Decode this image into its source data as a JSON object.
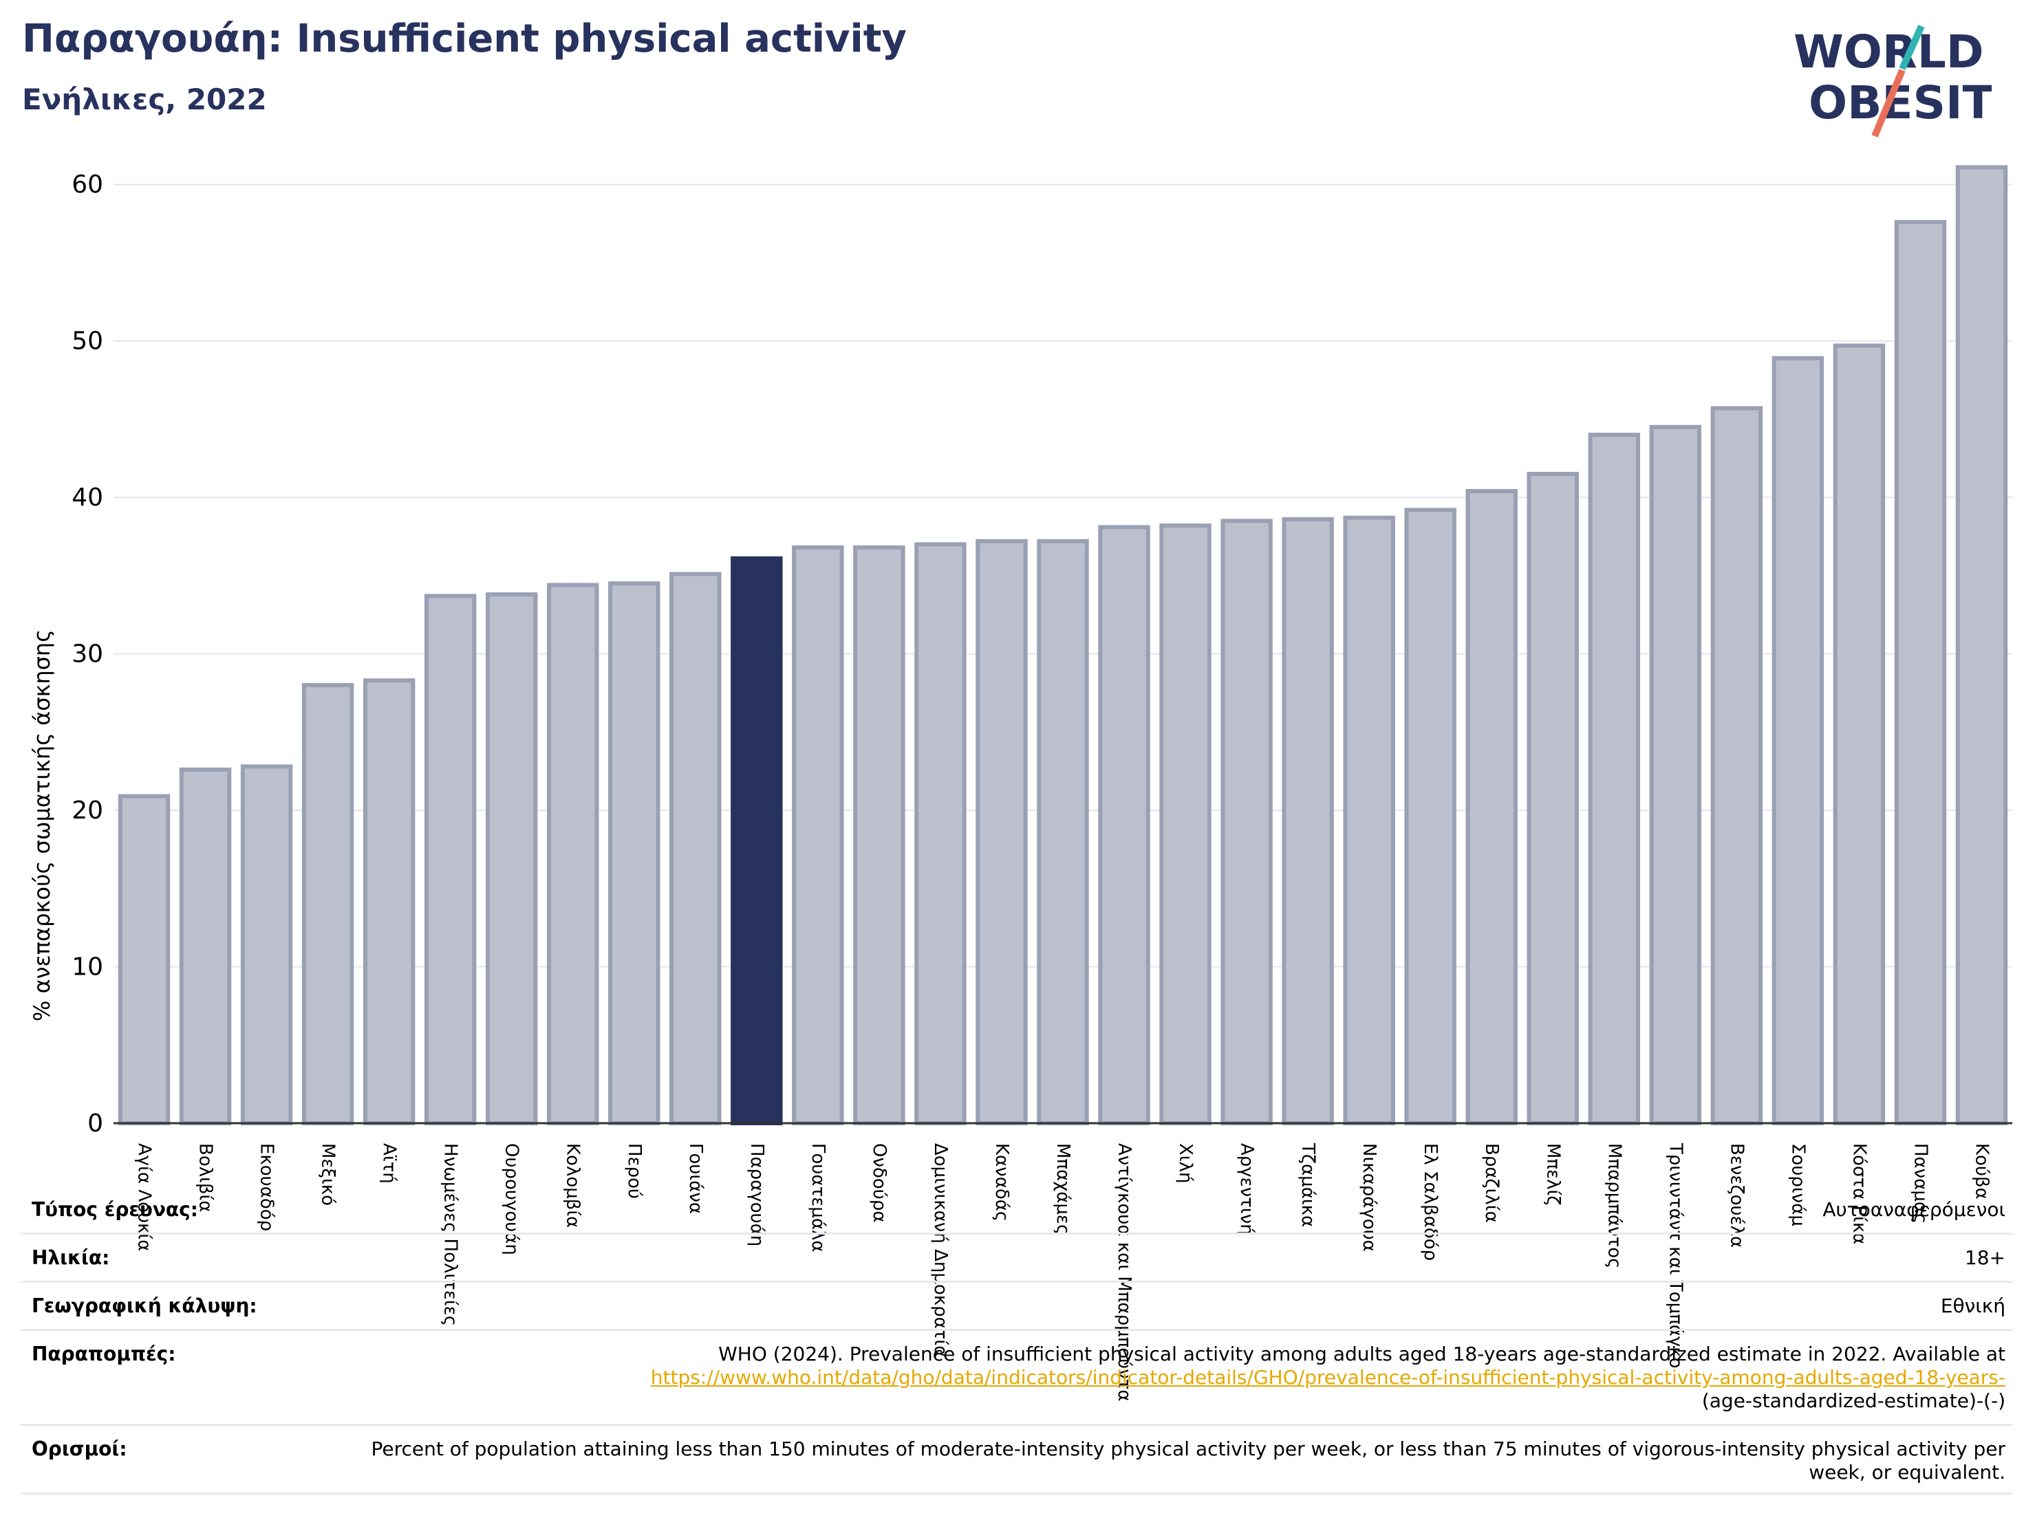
{
  "title": "Παραγουάη: Insufficient physical activity",
  "subtitle": "Ενήλικες, 2022",
  "logo": {
    "line1": "WORLD",
    "line2": "OBESITY"
  },
  "colors": {
    "highlight": "#27325e",
    "bar": "#bcc0cd",
    "bar_edge": "#9aa0b4",
    "text_dark": "#27325e",
    "link": "#e6a700"
  },
  "chart_data": {
    "type": "bar",
    "ylabel": "% ανεπαρκούς σωματικής άσκησης",
    "ylim": [
      0,
      63
    ],
    "yticks": [
      0,
      10,
      20,
      30,
      40,
      50,
      60
    ],
    "grid": true,
    "highlight": "Παραγουάη",
    "categories": [
      "Αγία Λουκία",
      "Βολιβία",
      "Εκουαδόρ",
      "Μεξικό",
      "Αϊτή",
      "Ηνωμένες Πολιτείες",
      "Ουρουγουάη",
      "Κολομβία",
      "Περού",
      "Γουιάνα",
      "Παραγουάη",
      "Γουατεμάλα",
      "Ονδούρα",
      "Δομινικανή Δημοκρατία",
      "Καναδάς",
      "Μπαχάμες",
      "Αντίγκουα και Μπαρμπούντα",
      "Χιλή",
      "Αργεντινή",
      "Τζαμάικα",
      "Νικαράγουα",
      "Ελ Σαλβαδόρ",
      "Βραζιλία",
      "Μπελίζ",
      "Μπαρμπάντος",
      "Τρινιντάντ και Τομπάγκο",
      "Βενεζουέλα",
      "Σουρινάμ",
      "Κόστα Ρίκα",
      "Παναμάς",
      "Κούβα"
    ],
    "values": [
      20.9,
      22.6,
      22.8,
      28.0,
      28.3,
      33.7,
      33.8,
      34.4,
      34.5,
      35.1,
      36.1,
      36.8,
      36.8,
      37.0,
      37.2,
      37.2,
      38.1,
      38.2,
      38.5,
      38.6,
      38.7,
      39.2,
      40.4,
      41.5,
      44.0,
      44.5,
      45.7,
      48.9,
      49.7,
      57.6,
      61.1
    ]
  },
  "meta": [
    {
      "label": "Τύπος έρευνας:",
      "value": "Αυτοαναφερόμενοι"
    },
    {
      "label": "Ηλικία:",
      "value": "18+"
    },
    {
      "label": "Γεωγραφική κάλυψη:",
      "value": "Εθνική"
    },
    {
      "label": "Παραπομπές:",
      "value": "WHO (2024). Prevalence of insufficient physical activity among adults aged 18-years age-standardized estimate in 2022. Available at",
      "link": "https://www.who.int/data/gho/data/indicators/indicator-details/GHO/prevalence-of-insufficient-physical-activity-among-adults-aged-18-years-",
      "tail": "(age-standardized-estimate)-(-)"
    },
    {
      "label": "Ορισμοί:",
      "value": "Percent of population attaining less than 150 minutes of moderate-intensity physical activity per week, or less than 75 minutes of vigorous-intensity physical activity per week, or equivalent."
    }
  ]
}
